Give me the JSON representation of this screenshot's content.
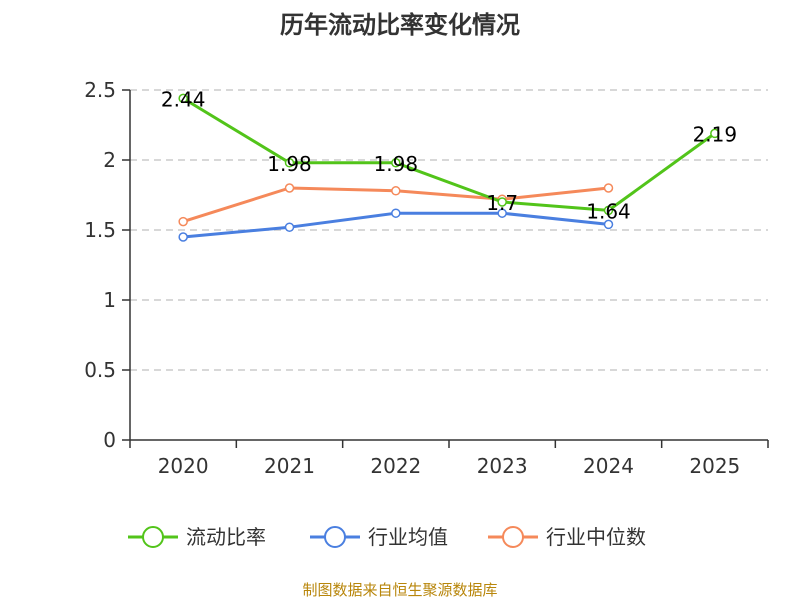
{
  "chart_data": {
    "type": "line",
    "title": "历年流动比率变化情况",
    "categories": [
      "2020",
      "2021",
      "2022",
      "2023",
      "2024",
      "2025"
    ],
    "yticks": [
      "0",
      "0.5",
      "1",
      "1.5",
      "2",
      "2.5"
    ],
    "ylim": [
      0,
      2.5
    ],
    "grid": true,
    "legend_position": "bottom",
    "series": [
      {
        "name": "流动比率",
        "color": "#52c41a",
        "values": [
          2.44,
          1.98,
          1.98,
          1.7,
          1.64,
          2.19
        ],
        "labels": [
          "2.44",
          "1.98",
          "1.98",
          "1.7",
          "1.64",
          "2.19"
        ]
      },
      {
        "name": "行业均值",
        "color": "#4a7fe0",
        "values": [
          1.45,
          1.52,
          1.62,
          1.62,
          1.54,
          null
        ]
      },
      {
        "name": "行业中位数",
        "color": "#f5895a",
        "values": [
          1.56,
          1.8,
          1.78,
          1.72,
          1.8,
          null
        ]
      }
    ],
    "source": "制图数据来自恒生聚源数据库"
  }
}
